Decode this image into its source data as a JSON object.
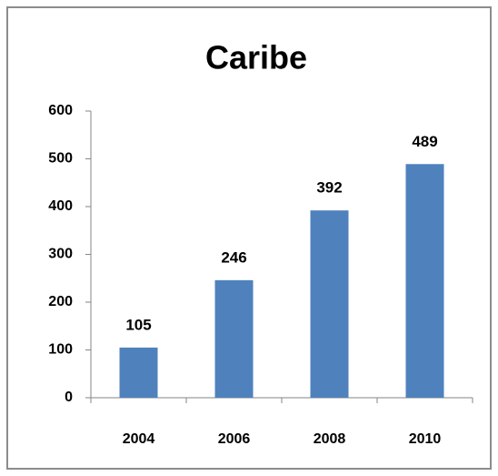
{
  "chart_data": {
    "type": "bar",
    "title": "Caribe",
    "categories": [
      "2004",
      "2006",
      "2008",
      "2010"
    ],
    "values": [
      105,
      246,
      392,
      489
    ],
    "color": "#4f81bd",
    "ylim": [
      0,
      600
    ],
    "yticks": [
      0,
      100,
      200,
      300,
      400,
      500,
      600
    ],
    "grid": false
  }
}
